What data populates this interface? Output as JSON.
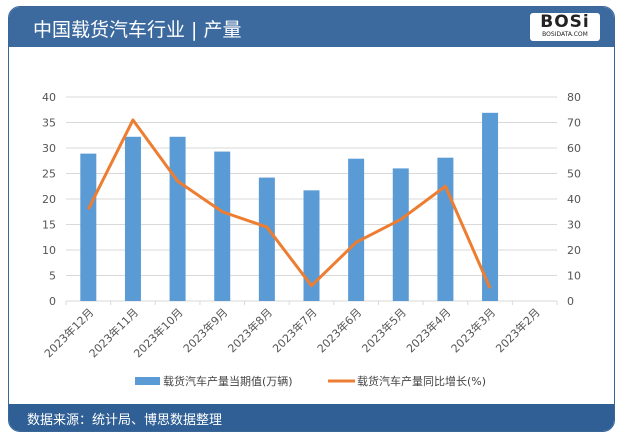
{
  "header": {
    "title": "中国载货汽车行业 | 产量",
    "logo_text": "BOSi",
    "logo_sub": "BOSIDATA.COM"
  },
  "footer": {
    "source": "数据来源：统计局、博思数据整理"
  },
  "colors": {
    "bar": "#5b9bd5",
    "line": "#ed7d31",
    "header": "#3c6a9f"
  },
  "chart_data": {
    "type": "bar+line",
    "categories": [
      "2023年12月",
      "2023年11月",
      "2023年10月",
      "2023年9月",
      "2023年8月",
      "2023年7月",
      "2023年6月",
      "2023年5月",
      "2023年4月",
      "2023年3月",
      "2023年2月"
    ],
    "series": [
      {
        "name": "载货汽车产量当期值(万辆)",
        "type": "bar",
        "axis": "left",
        "values": [
          28.9,
          32.2,
          32.2,
          29.3,
          24.2,
          21.7,
          27.9,
          26.0,
          28.1,
          36.9,
          null
        ]
      },
      {
        "name": "载货汽车产量同比增长(%)",
        "type": "line",
        "axis": "right",
        "values": [
          36,
          71,
          47,
          35,
          29,
          6,
          23,
          32,
          45,
          5,
          null
        ]
      }
    ],
    "ylim": [
      0,
      40
    ],
    "yticks": [
      0,
      5,
      10,
      15,
      20,
      25,
      30,
      35,
      40
    ],
    "y2lim": [
      0,
      80
    ],
    "y2ticks": [
      0,
      10,
      20,
      30,
      40,
      50,
      60,
      70,
      80
    ],
    "grid": true,
    "legend": "bottom"
  }
}
